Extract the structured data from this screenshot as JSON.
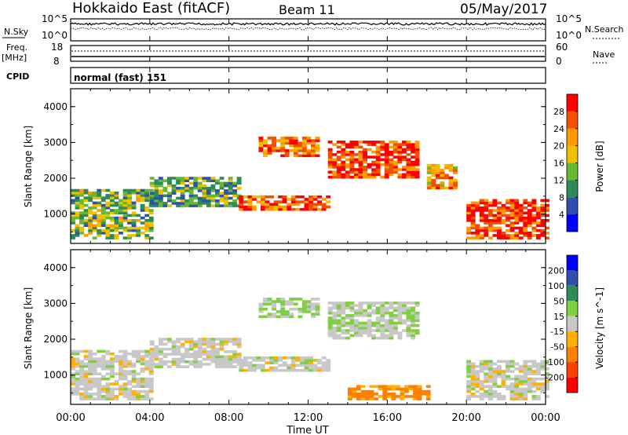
{
  "header": {
    "station": "Hokkaido East (fitACF)",
    "beam": "Beam 11",
    "date": "05/May/2017"
  },
  "panels": {
    "nsky": {
      "label": "N.Sky",
      "tick_top": "10^5",
      "tick_bottom": "10^0",
      "right_tick_top": "10^5",
      "right_tick_bottom": "10^0",
      "right_label": "N.Search"
    },
    "freq": {
      "label_line1": "Freq.",
      "label_line2": "[MHz]",
      "tick_top": "18",
      "tick_bottom": "8",
      "right_tick_top": "60",
      "right_tick_bottom": "0",
      "right_label": "Nave"
    },
    "cpid": {
      "label": "CPID",
      "value": "normal (fast) 151"
    }
  },
  "colors": {
    "power": [
      "#0000ff",
      "#3050b0",
      "#2e8b57",
      "#66b832",
      "#f0c000",
      "#ff9a00",
      "#f05000",
      "#ff0000"
    ],
    "velocity": [
      "#ff0000",
      "#ff4000",
      "#ff8000",
      "#ffb000",
      "#c8c8c8",
      "#7ed040",
      "#2e8b57",
      "#3050b0",
      "#0000ff"
    ]
  },
  "chart_data": [
    {
      "type": "heatmap",
      "quantity": "Power",
      "ylabel": "Slant Range [km]",
      "xlabel": "Time UT",
      "x_ticks": [
        "00:00",
        "04:00",
        "08:00",
        "12:00",
        "16:00",
        "20:00",
        "00:00"
      ],
      "y_ticks": [
        "1000",
        "2000",
        "3000",
        "4000"
      ],
      "ylim": [
        180,
        4500
      ],
      "colorbar_label": "Power [dB]",
      "colorbar_ticks": [
        "4",
        "8",
        "12",
        "16",
        "20",
        "24",
        "28"
      ],
      "colorbar_range": [
        0,
        32
      ],
      "regions": [
        {
          "t0": 0.0,
          "t1": 4.0,
          "r0": 300,
          "r1": 1700,
          "level": 14
        },
        {
          "t0": 4.0,
          "t1": 8.5,
          "r0": 1200,
          "r1": 2000,
          "level": 12
        },
        {
          "t0": 8.5,
          "t1": 13.0,
          "r0": 1100,
          "r1": 1500,
          "level": 26
        },
        {
          "t0": 9.5,
          "t1": 12.5,
          "r0": 2600,
          "r1": 3100,
          "level": 24
        },
        {
          "t0": 13.0,
          "t1": 17.5,
          "r0": 2000,
          "r1": 3000,
          "level": 27
        },
        {
          "t0": 18.0,
          "t1": 19.5,
          "r0": 1700,
          "r1": 2400,
          "level": 22
        },
        {
          "t0": 20.0,
          "t1": 24.0,
          "r0": 300,
          "r1": 1400,
          "level": 28
        }
      ]
    },
    {
      "type": "heatmap",
      "quantity": "Velocity",
      "ylabel": "Slant Range [km]",
      "xlabel": "Time UT",
      "x_ticks": [
        "00:00",
        "04:00",
        "08:00",
        "12:00",
        "16:00",
        "20:00",
        "00:00"
      ],
      "y_ticks": [
        "1000",
        "2000",
        "3000",
        "4000"
      ],
      "ylim": [
        180,
        4500
      ],
      "colorbar_label": "Velocity [m s^-1]",
      "colorbar_ticks": [
        "200",
        "100",
        "50",
        "15",
        "-15",
        "-50",
        "-100",
        "-200"
      ],
      "regions": [
        {
          "t0": 0.0,
          "t1": 4.0,
          "r0": 300,
          "r1": 1700,
          "level": 0
        },
        {
          "t0": 4.0,
          "t1": 8.5,
          "r0": 1200,
          "r1": 2000,
          "level": 0
        },
        {
          "t0": 8.5,
          "t1": 13.0,
          "r0": 1100,
          "r1": 1500,
          "level": 0
        },
        {
          "t0": 9.5,
          "t1": 12.5,
          "r0": 2600,
          "r1": 3100,
          "level": 20
        },
        {
          "t0": 13.0,
          "t1": 17.5,
          "r0": 2000,
          "r1": 3000,
          "level": 10
        },
        {
          "t0": 14.0,
          "t1": 18.0,
          "r0": 300,
          "r1": 700,
          "level": -60
        },
        {
          "t0": 20.0,
          "t1": 24.0,
          "r0": 300,
          "r1": 1400,
          "level": 0
        }
      ]
    }
  ]
}
